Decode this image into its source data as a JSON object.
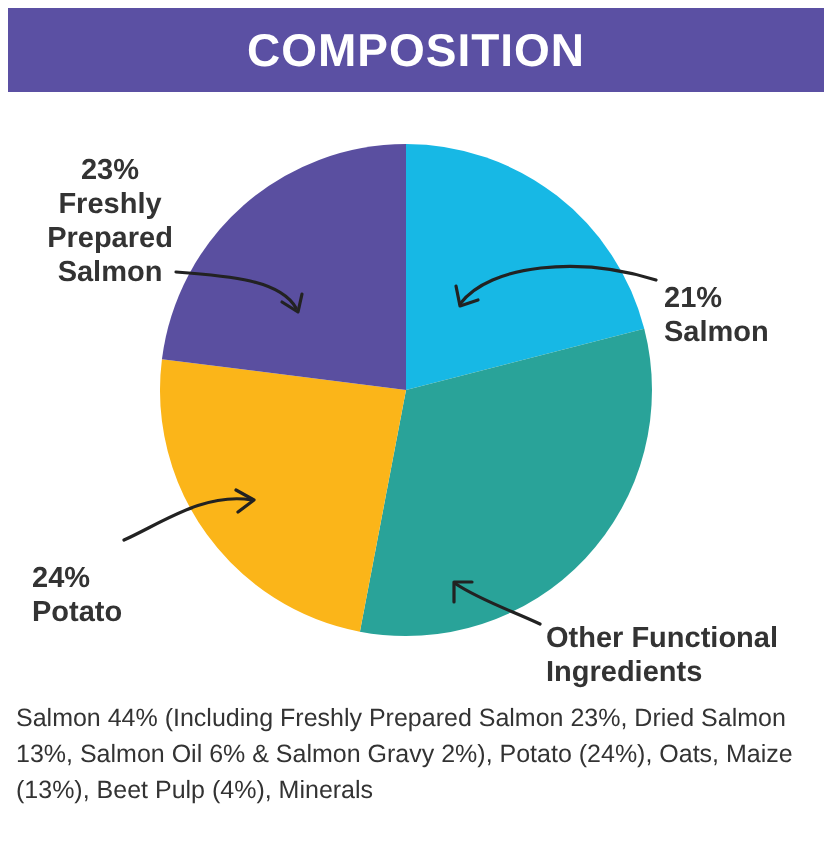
{
  "chart_data": {
    "type": "pie",
    "title": "COMPOSITION",
    "categories": [
      "Salmon",
      "Other Functional Ingredients",
      "Potato",
      "Freshly Prepared Salmon"
    ],
    "values": [
      21,
      32,
      24,
      23
    ],
    "value_labels": [
      "21%",
      null,
      "24%",
      "23%"
    ],
    "colors": [
      "#17b8e5",
      "#29a399",
      "#fbb519",
      "#5a4fa0"
    ],
    "legend": false,
    "annotations": [
      "Salmon 44% (Including Freshly Prepared Salmon 23%, Dried Salmon 13%, Salmon Oil 6% & Salmon Gravy 2%), Potato (24%), Oats, Maize (13%), Beet Pulp (4%), Minerals"
    ]
  }
}
